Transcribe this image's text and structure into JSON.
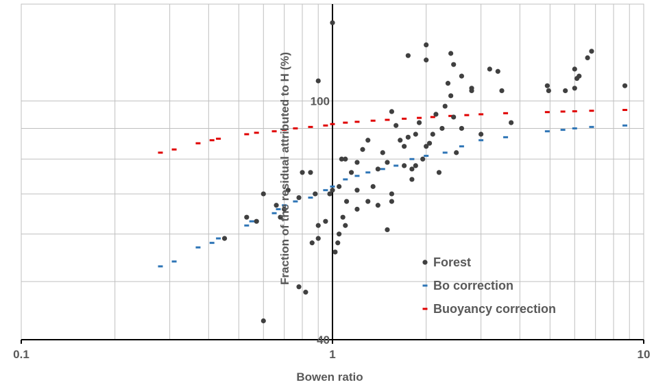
{
  "chart_data": {
    "type": "scatter",
    "xlabel": "Bowen ratio",
    "ylabel": "Fraction of the residual attributed  to H (%)",
    "x_scale": "log",
    "y_scale": "log",
    "xlim": [
      0.1,
      10
    ],
    "ylim": [
      40,
      145
    ],
    "x_ticks": [
      "0.1",
      "1",
      "10"
    ],
    "y_ticks": [
      "40",
      "100"
    ],
    "grid": true,
    "legend_position": "bottom-right inside plot",
    "series": [
      {
        "name": "Forest",
        "marker": "circle",
        "color": "#404040",
        "points": [
          [
            1.0,
            135
          ],
          [
            1.07,
            80
          ],
          [
            1.11,
            68
          ],
          [
            1.2,
            79
          ],
          [
            1.35,
            72
          ],
          [
            1.4,
            77
          ],
          [
            1.55,
            70
          ],
          [
            1.7,
            78
          ],
          [
            1.8,
            74
          ],
          [
            2.0,
            84
          ],
          [
            2.1,
            88
          ],
          [
            2.2,
            76
          ],
          [
            2.5,
            82
          ],
          [
            1.25,
            83
          ],
          [
            1.3,
            86
          ],
          [
            1.45,
            82
          ],
          [
            1.6,
            91
          ],
          [
            1.75,
            87
          ],
          [
            1.9,
            92
          ],
          [
            2.3,
            98
          ],
          [
            2.4,
            102
          ],
          [
            2.6,
            90
          ],
          [
            2.8,
            104
          ],
          [
            3.0,
            88
          ],
          [
            3.5,
            104
          ],
          [
            3.75,
            92
          ],
          [
            1.5,
            79
          ],
          [
            1.65,
            86
          ],
          [
            1.85,
            88
          ],
          [
            2.05,
            85
          ],
          [
            2.25,
            90
          ],
          [
            2.45,
            94
          ],
          [
            1.55,
            96
          ],
          [
            1.7,
            84
          ],
          [
            1.8,
            77
          ],
          [
            1.95,
            80
          ],
          [
            2.15,
            95
          ],
          [
            2.35,
            107
          ],
          [
            1.75,
            119
          ],
          [
            2.0,
            117
          ],
          [
            2.45,
            115
          ],
          [
            2.6,
            110
          ],
          [
            3.2,
            113
          ],
          [
            3.4,
            112
          ],
          [
            2.0,
            124
          ],
          [
            2.4,
            120
          ],
          [
            1.1,
            80
          ],
          [
            1.15,
            76
          ],
          [
            1.05,
            72
          ],
          [
            1.08,
            64
          ],
          [
            1.1,
            62
          ],
          [
            1.2,
            66
          ],
          [
            1.3,
            68
          ],
          [
            1.4,
            67
          ],
          [
            1.5,
            61
          ],
          [
            1.55,
            68
          ],
          [
            1.05,
            60
          ],
          [
            1.04,
            58
          ],
          [
            1.02,
            56
          ],
          [
            1.2,
            71
          ],
          [
            1.0,
            71
          ],
          [
            0.98,
            70
          ],
          [
            0.95,
            63
          ],
          [
            0.9,
            62
          ],
          [
            0.88,
            70
          ],
          [
            0.85,
            76
          ],
          [
            0.8,
            76
          ],
          [
            0.78,
            69
          ],
          [
            0.72,
            71
          ],
          [
            0.7,
            66
          ],
          [
            0.68,
            64
          ],
          [
            0.66,
            67
          ],
          [
            0.6,
            70
          ],
          [
            0.57,
            63
          ],
          [
            0.53,
            64
          ],
          [
            0.45,
            59
          ],
          [
            0.86,
            58
          ],
          [
            0.9,
            59
          ],
          [
            0.78,
            49
          ],
          [
            0.82,
            48
          ],
          [
            0.6,
            43
          ],
          [
            0.9,
            108
          ],
          [
            2.8,
            105
          ],
          [
            1.85,
            78
          ],
          [
            4.9,
            106
          ],
          [
            4.95,
            104
          ],
          [
            5.6,
            104
          ],
          [
            6.0,
            105
          ],
          [
            6.2,
            110
          ],
          [
            6.6,
            118
          ],
          [
            6.8,
            121
          ],
          [
            8.7,
            106
          ],
          [
            6.0,
            113
          ],
          [
            6.1,
            109
          ]
        ]
      },
      {
        "name": "Bo correction",
        "marker": "dash",
        "color": "#2e75b6",
        "points": [
          [
            0.28,
            53
          ],
          [
            0.31,
            54
          ],
          [
            0.37,
            57
          ],
          [
            0.41,
            58
          ],
          [
            0.43,
            59
          ],
          [
            0.53,
            62
          ],
          [
            0.55,
            63
          ],
          [
            0.57,
            63
          ],
          [
            0.65,
            65
          ],
          [
            0.67,
            66
          ],
          [
            0.7,
            67
          ],
          [
            0.76,
            68
          ],
          [
            0.85,
            69
          ],
          [
            0.88,
            70
          ],
          [
            0.95,
            71
          ],
          [
            1.0,
            72
          ],
          [
            1.1,
            74
          ],
          [
            1.2,
            75
          ],
          [
            1.3,
            76
          ],
          [
            1.45,
            77
          ],
          [
            1.6,
            78
          ],
          [
            1.8,
            80
          ],
          [
            2.0,
            81
          ],
          [
            2.3,
            82
          ],
          [
            2.6,
            84
          ],
          [
            3.0,
            86
          ],
          [
            3.6,
            87
          ],
          [
            4.9,
            89
          ],
          [
            5.5,
            89.5
          ],
          [
            6.0,
            90
          ],
          [
            6.8,
            90.5
          ],
          [
            8.7,
            91
          ]
        ]
      },
      {
        "name": "Buoyancy correction",
        "marker": "dash",
        "color": "#e00000",
        "points": [
          [
            0.28,
            82
          ],
          [
            0.31,
            83
          ],
          [
            0.37,
            85
          ],
          [
            0.41,
            86
          ],
          [
            0.43,
            86.5
          ],
          [
            0.53,
            88
          ],
          [
            0.57,
            88.5
          ],
          [
            0.65,
            89
          ],
          [
            0.7,
            89.5
          ],
          [
            0.76,
            90
          ],
          [
            0.85,
            90.5
          ],
          [
            0.95,
            91
          ],
          [
            1.0,
            91.5
          ],
          [
            1.1,
            92
          ],
          [
            1.2,
            92.3
          ],
          [
            1.35,
            92.7
          ],
          [
            1.5,
            93
          ],
          [
            1.7,
            93.4
          ],
          [
            1.9,
            93.7
          ],
          [
            2.1,
            94
          ],
          [
            2.4,
            94.4
          ],
          [
            2.7,
            94.7
          ],
          [
            3.0,
            95
          ],
          [
            3.6,
            95.4
          ],
          [
            4.9,
            95.8
          ],
          [
            5.5,
            96
          ],
          [
            6.0,
            96.1
          ],
          [
            6.8,
            96.3
          ],
          [
            8.7,
            96.6
          ]
        ]
      }
    ]
  }
}
